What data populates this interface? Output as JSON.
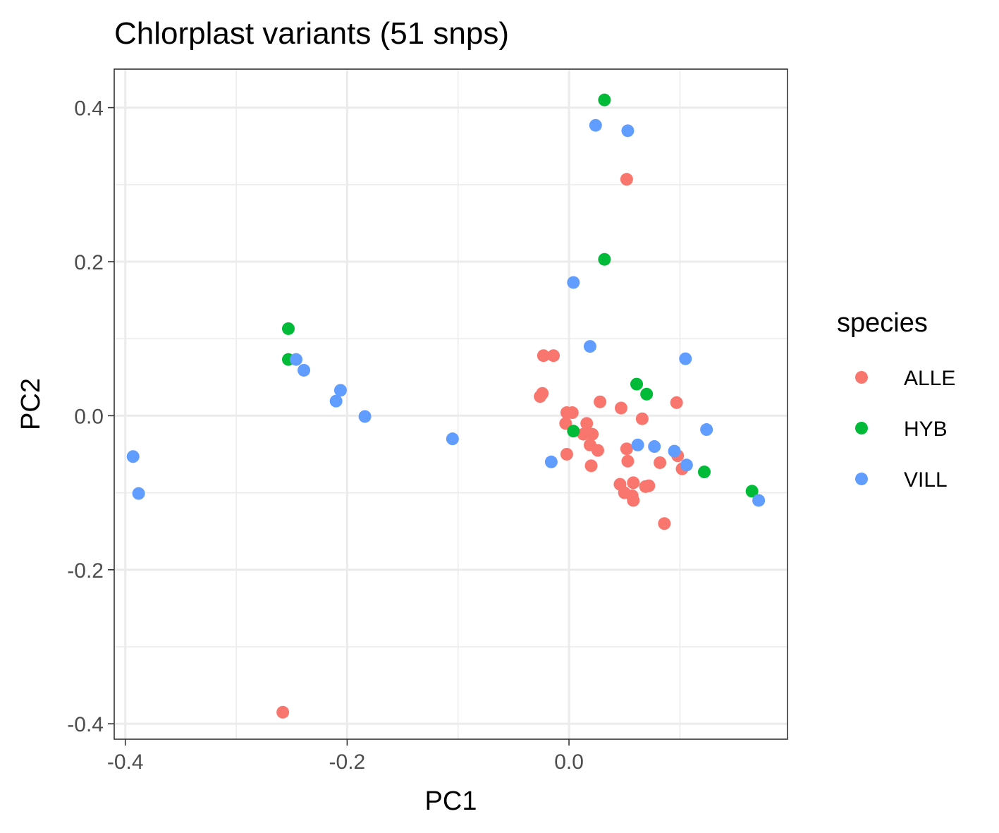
{
  "chart_data": {
    "type": "scatter",
    "title": "Chlorplast variants (51 snps)",
    "xlabel": "PC1",
    "ylabel": "PC2",
    "xlim": [
      -0.41,
      0.197
    ],
    "ylim": [
      -0.42,
      0.45
    ],
    "x_ticks": [
      -0.4,
      -0.2,
      0.0
    ],
    "x_tick_labels": [
      "-0.4",
      "-0.2",
      "0.0"
    ],
    "y_ticks": [
      -0.4,
      -0.2,
      0.0,
      0.2,
      0.4
    ],
    "y_tick_labels": [
      "-0.4",
      "-0.2",
      "0.0",
      "0.2",
      "0.4"
    ],
    "grid": true,
    "legend": {
      "title": "species",
      "position": "right"
    },
    "series": [
      {
        "name": "ALLE",
        "color": "#F8766D",
        "points": [
          [
            0.052,
            0.307
          ],
          [
            -0.258,
            -0.385
          ],
          [
            -0.023,
            0.078
          ],
          [
            -0.014,
            0.078
          ],
          [
            -0.024,
            0.029
          ],
          [
            -0.026,
            0.025
          ],
          [
            0.028,
            0.018
          ],
          [
            0.097,
            0.017
          ],
          [
            -0.002,
            0.004
          ],
          [
            0.003,
            0.004
          ],
          [
            0.047,
            0.01
          ],
          [
            0.066,
            -0.004
          ],
          [
            -0.003,
            -0.01
          ],
          [
            0.016,
            -0.01
          ],
          [
            0.013,
            -0.024
          ],
          [
            0.021,
            -0.024
          ],
          [
            0.019,
            -0.038
          ],
          [
            0.026,
            -0.045
          ],
          [
            0.052,
            -0.043
          ],
          [
            -0.002,
            -0.05
          ],
          [
            0.02,
            -0.065
          ],
          [
            0.053,
            -0.059
          ],
          [
            0.082,
            -0.061
          ],
          [
            0.098,
            -0.052
          ],
          [
            0.102,
            -0.069
          ],
          [
            0.046,
            -0.089
          ],
          [
            0.058,
            -0.087
          ],
          [
            0.069,
            -0.092
          ],
          [
            0.072,
            -0.091
          ],
          [
            0.05,
            -0.1
          ],
          [
            0.057,
            -0.104
          ],
          [
            0.058,
            -0.11
          ],
          [
            0.086,
            -0.14
          ]
        ]
      },
      {
        "name": "HYB",
        "color": "#00BA38",
        "points": [
          [
            0.032,
            0.41
          ],
          [
            0.032,
            0.203
          ],
          [
            -0.253,
            0.113
          ],
          [
            -0.253,
            0.073
          ],
          [
            0.061,
            0.041
          ],
          [
            0.07,
            0.028
          ],
          [
            0.004,
            -0.02
          ],
          [
            0.122,
            -0.073
          ],
          [
            0.165,
            -0.098
          ]
        ]
      },
      {
        "name": "VILL",
        "color": "#619CFF",
        "points": [
          [
            0.024,
            0.377
          ],
          [
            0.053,
            0.37
          ],
          [
            0.004,
            0.173
          ],
          [
            0.019,
            0.09
          ],
          [
            0.105,
            0.074
          ],
          [
            -0.246,
            0.073
          ],
          [
            -0.239,
            0.059
          ],
          [
            -0.206,
            0.033
          ],
          [
            -0.21,
            0.019
          ],
          [
            -0.184,
            -0.001
          ],
          [
            -0.105,
            -0.03
          ],
          [
            0.124,
            -0.018
          ],
          [
            0.062,
            -0.038
          ],
          [
            0.077,
            -0.04
          ],
          [
            0.095,
            -0.046
          ],
          [
            -0.016,
            -0.06
          ],
          [
            0.106,
            -0.064
          ],
          [
            -0.393,
            -0.053
          ],
          [
            -0.388,
            -0.101
          ],
          [
            0.171,
            -0.11
          ]
        ]
      }
    ]
  }
}
